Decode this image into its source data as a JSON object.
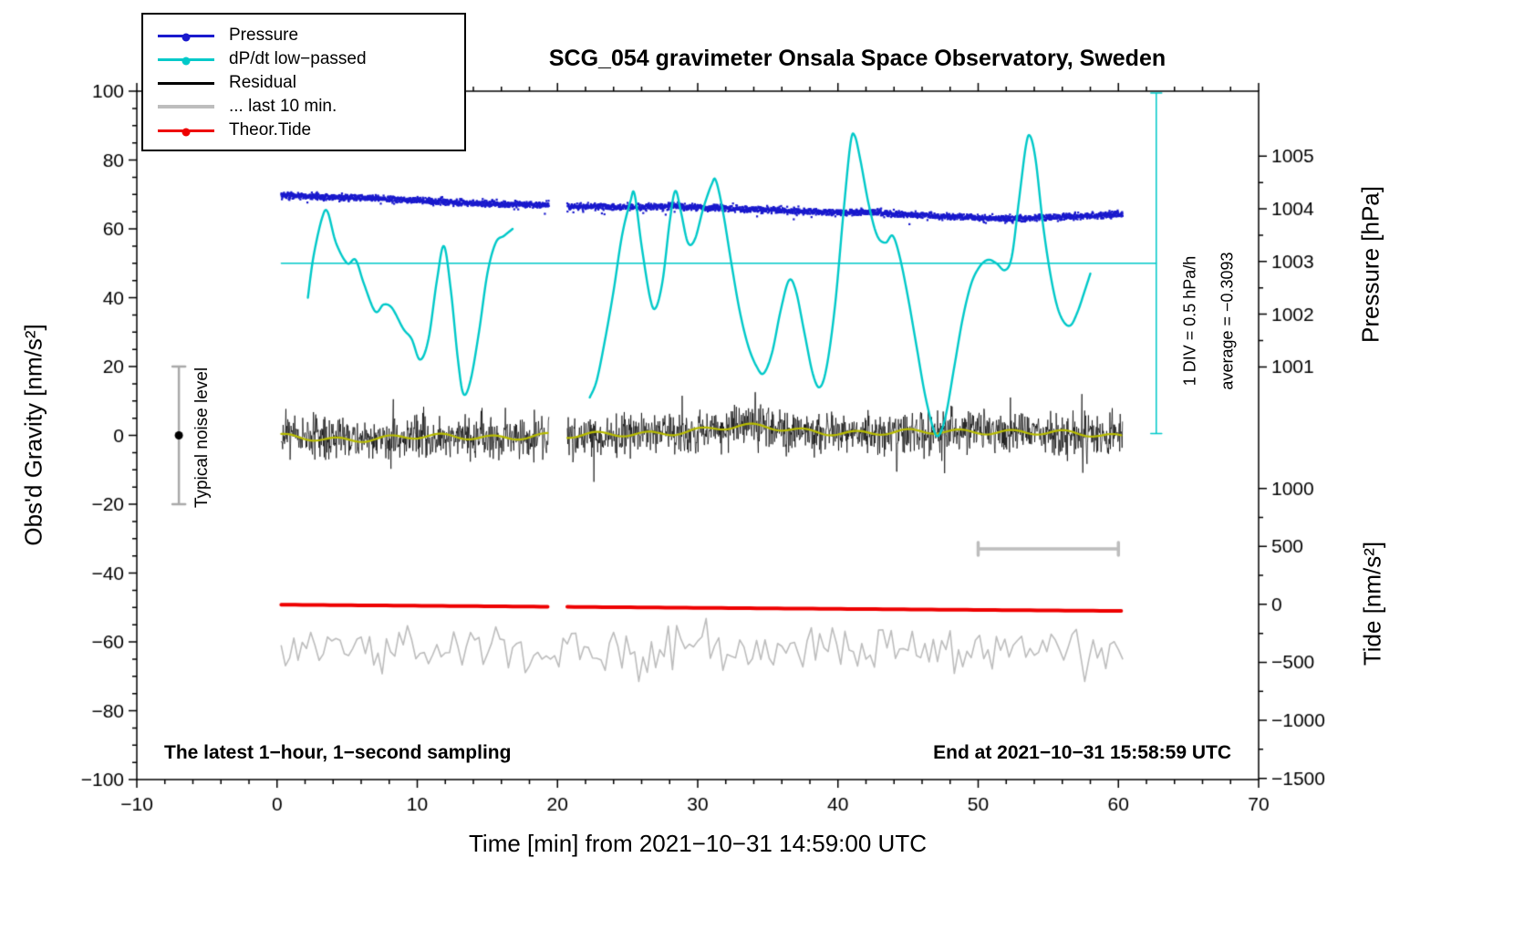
{
  "title": "SCG_054 gravimeter Onsala Space Observatory, Sweden",
  "footer": {
    "left": "The latest 1−hour, 1−second sampling",
    "right": "End at 2021−10−31 15:58:59 UTC"
  },
  "annotations": {
    "noise_level": "Typical noise level",
    "div_scale": "1 DIV = 0.5 hPa/h",
    "average": "average = −0.3093"
  },
  "legend": {
    "items": [
      {
        "label": "Pressure",
        "color": "#1a1acd",
        "marker": "dot-line",
        "thick": false
      },
      {
        "label": "dP/dt low−passed",
        "color": "#00c9c9",
        "marker": "dot-line",
        "thick": false
      },
      {
        "label": "Residual",
        "color": "#000000",
        "marker": "line",
        "thick": false
      },
      {
        "label": "... last 10 min.",
        "color": "#bdbdbd",
        "marker": "line",
        "thick": true
      },
      {
        "label": "Theor.Tide",
        "color": "#ee0000",
        "marker": "dot-line",
        "thick": false
      }
    ]
  },
  "chart_data": {
    "type": "line",
    "title": "SCG_054 gravimeter Onsala Space Observatory, Sweden",
    "xlabel": "Time [min] from 2021−10−31 14:59:00 UTC",
    "x_axis": {
      "label": "Time [min] from 2021−10−31 14:59:00 UTC",
      "min": -10,
      "max": 70,
      "major_ticks": [
        -10,
        0,
        10,
        20,
        30,
        40,
        50,
        60,
        70
      ],
      "minor_step": 2
    },
    "y_left": {
      "label": "Obs'd Gravity [nm/s²]",
      "min": -100,
      "max": 100,
      "major_ticks": [
        -100,
        -80,
        -60,
        -40,
        -20,
        0,
        20,
        40,
        60,
        80,
        100
      ],
      "minor_step": 5
    },
    "y_right_pressure": {
      "label": "Pressure [hPa]",
      "ticks": [
        1001,
        1002,
        1003,
        1004,
        1005
      ],
      "minor_step": 0.5,
      "value_ref": 1003,
      "left_units_ref": 50.5,
      "left_units_per_unit": 15.3
    },
    "y_right_tide": {
      "label": "Tide [nm/s²]",
      "ticks": [
        1000,
        500,
        0,
        -500,
        -1000,
        -1500
      ],
      "minor_step": 250,
      "value_ref": 0,
      "left_units_ref": -49.1,
      "left_units_per_unit": 0.0337
    },
    "gap": {
      "start": 19.4,
      "end": 20.7
    },
    "series": {
      "pressure": {
        "name": "Pressure",
        "color": "#1a1acd",
        "style": "dots",
        "units": "hPa",
        "x_start": 0.3,
        "x_end": 60.3,
        "samples_per_min": 60,
        "noise_sigma": 0.03,
        "trend": [
          [
            0.3,
            1004.26
          ],
          [
            3,
            1004.23
          ],
          [
            6,
            1004.21
          ],
          [
            9,
            1004.17
          ],
          [
            12,
            1004.13
          ],
          [
            15,
            1004.1
          ],
          [
            17,
            1004.09
          ],
          [
            19.4,
            1004.07
          ],
          [
            20.7,
            1004.05
          ],
          [
            23,
            1004.04
          ],
          [
            26,
            1004.03
          ],
          [
            28,
            1004.05
          ],
          [
            30,
            1004.03
          ],
          [
            32,
            1004.01
          ],
          [
            34,
            1003.99
          ],
          [
            36,
            1003.97
          ],
          [
            38,
            1003.95
          ],
          [
            40,
            1003.93
          ],
          [
            42,
            1003.94
          ],
          [
            44,
            1003.9
          ],
          [
            46,
            1003.88
          ],
          [
            48,
            1003.85
          ],
          [
            50,
            1003.83
          ],
          [
            52,
            1003.81
          ],
          [
            54,
            1003.82
          ],
          [
            56,
            1003.85
          ],
          [
            58,
            1003.87
          ],
          [
            60.3,
            1003.9
          ]
        ]
      },
      "dpdt": {
        "name": "dP/dt low−passed",
        "color": "#00c9c9",
        "units": "left_units",
        "zero_at_left_units": 50,
        "segments": [
          [
            [
              2.2,
              40
            ],
            [
              2.6,
              52
            ],
            [
              3.2,
              63
            ],
            [
              3.6,
              65
            ],
            [
              4.2,
              56
            ],
            [
              5.0,
              50
            ],
            [
              5.6,
              51
            ],
            [
              6.2,
              44
            ],
            [
              7.0,
              36
            ],
            [
              7.6,
              38
            ],
            [
              8.2,
              37
            ],
            [
              9.0,
              31
            ],
            [
              9.6,
              28
            ],
            [
              10.2,
              22
            ],
            [
              10.8,
              28
            ],
            [
              11.4,
              45
            ],
            [
              11.9,
              55
            ],
            [
              12.4,
              42
            ],
            [
              12.9,
              22
            ],
            [
              13.3,
              12
            ],
            [
              13.8,
              16
            ],
            [
              14.4,
              30
            ],
            [
              15.0,
              47
            ],
            [
              15.6,
              56
            ],
            [
              16.2,
              58
            ],
            [
              16.8,
              60
            ]
          ],
          [
            [
              22.3,
              11
            ],
            [
              22.8,
              16
            ],
            [
              23.4,
              28
            ],
            [
              24.0,
              42
            ],
            [
              24.6,
              58
            ],
            [
              25.2,
              68
            ],
            [
              25.5,
              70
            ],
            [
              26.0,
              55
            ],
            [
              26.6,
              40
            ],
            [
              27.0,
              37
            ],
            [
              27.5,
              45
            ],
            [
              28.0,
              62
            ],
            [
              28.4,
              71
            ],
            [
              28.8,
              65
            ],
            [
              29.3,
              56
            ],
            [
              29.8,
              57
            ],
            [
              30.4,
              66
            ],
            [
              31.0,
              73
            ],
            [
              31.3,
              74
            ],
            [
              31.8,
              65
            ],
            [
              32.4,
              50
            ],
            [
              33.0,
              36
            ],
            [
              33.6,
              26
            ],
            [
              34.2,
              20
            ],
            [
              34.7,
              18
            ],
            [
              35.3,
              24
            ],
            [
              35.9,
              36
            ],
            [
              36.5,
              45
            ],
            [
              37.0,
              42
            ],
            [
              37.6,
              30
            ],
            [
              38.2,
              18
            ],
            [
              38.7,
              14
            ],
            [
              39.2,
              20
            ],
            [
              39.8,
              38
            ],
            [
              40.4,
              65
            ],
            [
              40.9,
              85
            ],
            [
              41.2,
              87
            ],
            [
              41.6,
              80
            ],
            [
              42.2,
              67
            ],
            [
              42.8,
              58
            ],
            [
              43.4,
              56
            ],
            [
              43.9,
              58
            ],
            [
              44.4,
              52
            ],
            [
              45.0,
              40
            ],
            [
              45.6,
              26
            ],
            [
              46.2,
              12
            ],
            [
              46.8,
              2
            ],
            [
              47.2,
              0
            ],
            [
              47.7,
              6
            ],
            [
              48.3,
              20
            ],
            [
              48.9,
              34
            ],
            [
              49.5,
              44
            ],
            [
              50.1,
              49
            ],
            [
              50.7,
              51
            ],
            [
              51.3,
              50
            ],
            [
              51.9,
              48
            ],
            [
              52.4,
              52
            ],
            [
              52.9,
              68
            ],
            [
              53.4,
              84
            ],
            [
              53.7,
              87
            ],
            [
              54.1,
              80
            ],
            [
              54.6,
              62
            ],
            [
              55.1,
              48
            ],
            [
              55.6,
              38
            ],
            [
              56.1,
              33
            ],
            [
              56.6,
              32
            ],
            [
              57.1,
              36
            ],
            [
              57.6,
              42
            ],
            [
              58.0,
              47
            ]
          ]
        ]
      },
      "residual": {
        "name": "Residual",
        "color": "#000000",
        "units": "left_units",
        "noise_sigma": 3.1,
        "step": 0.0333,
        "x_start": 0.3,
        "x_end": 60.3,
        "mean": [
          [
            0.3,
            -0.5
          ],
          [
            5,
            -1
          ],
          [
            10,
            -0.6
          ],
          [
            15,
            -0.4
          ],
          [
            19.4,
            0
          ],
          [
            20.7,
            -0.4
          ],
          [
            24,
            0.2
          ],
          [
            27,
            0.8
          ],
          [
            30,
            1.6
          ],
          [
            33,
            2.4
          ],
          [
            35,
            2.2
          ],
          [
            38,
            1.4
          ],
          [
            41,
            0.8
          ],
          [
            44,
            0.6
          ],
          [
            47,
            1
          ],
          [
            50,
            1.4
          ],
          [
            52,
            1.2
          ],
          [
            55,
            0.6
          ],
          [
            58,
            0.1
          ],
          [
            60.3,
            -0.3
          ]
        ],
        "spikes": [
          [
            8.3,
            10.5
          ],
          [
            22.6,
            -13.5
          ],
          [
            28.9,
            11.5
          ],
          [
            34.1,
            12.5
          ],
          [
            44.2,
            -10.5
          ],
          [
            47.6,
            -11
          ],
          [
            52.3,
            11
          ],
          [
            57.4,
            12
          ]
        ]
      },
      "residual_smooth": {
        "name": "Residual smoothed",
        "color": "#b8bc00",
        "width": 2.2
      },
      "last10": {
        "name": "... last 10 min.",
        "color": "#bdbdbd",
        "units": "left_units",
        "center": -62,
        "sigma": 3.3,
        "step": 0.3,
        "x_start": 0.3,
        "x_end": 60.3
      },
      "tide": {
        "name": "Theor.Tide",
        "color": "#ee0000",
        "units": "tide",
        "width": 4,
        "points": [
          [
            0.3,
            -3
          ],
          [
            10,
            -12
          ],
          [
            20,
            -21
          ],
          [
            30,
            -30
          ],
          [
            40,
            -39
          ],
          [
            50,
            -48
          ],
          [
            60.3,
            -57
          ]
        ]
      }
    },
    "extras": {
      "noise_bar": {
        "x": -7,
        "y_min": -20,
        "y_max": 20,
        "dot_y": 0,
        "bar_color": "#a9a9a9",
        "dot_color": "#000000"
      },
      "scale_bar": {
        "y": -33,
        "x_min": 50,
        "x_max": 60,
        "color": "#bdbdbd"
      },
      "dpdt_zero_line": {
        "y": 50,
        "x_min": 0.3,
        "x_max": 62.7,
        "color": "#00c9c9"
      },
      "dpdt_scale_bar": {
        "x": 62.7,
        "y_min": 0.5,
        "y_max": 99.5,
        "color": "#00c9c9"
      }
    }
  }
}
